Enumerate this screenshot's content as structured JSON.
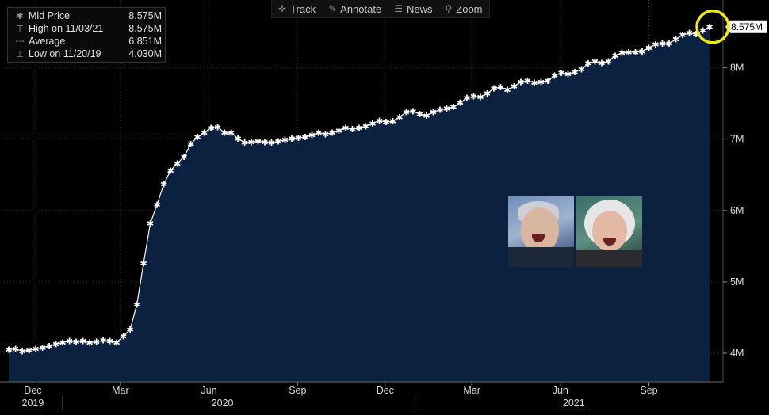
{
  "toolbar": {
    "track": "Track",
    "annotate": "Annotate",
    "news": "News",
    "zoom": "Zoom"
  },
  "legend": [
    {
      "label": "Mid Price",
      "value": "8.575M"
    },
    {
      "label": "High on 11/03/21",
      "value": "8.575M"
    },
    {
      "label": "Average",
      "value": "6.851M"
    },
    {
      "label": "Low on 11/20/19",
      "value": "4.030M"
    }
  ],
  "last_price_label": "8.575M",
  "colors": {
    "area": "#0a2240",
    "line": "#ffffff",
    "grid": "#3a3a3a",
    "highlight": "#f2e51a"
  },
  "chart_data": {
    "type": "area",
    "y_unit": "M",
    "ylim": [
      3.6,
      8.95
    ],
    "y_ticks": [
      {
        "value": 4,
        "label": "4M"
      },
      {
        "value": 5,
        "label": "5M"
      },
      {
        "value": 6,
        "label": "6M"
      },
      {
        "value": 7,
        "label": "7M"
      },
      {
        "value": 8,
        "label": "8M"
      }
    ],
    "x_range": [
      "2019-11-01",
      "2021-11-17"
    ],
    "x_ticks": [
      {
        "date": "2019-12-01",
        "label": "Dec"
      },
      {
        "date": "2020-03-01",
        "label": "Mar"
      },
      {
        "date": "2020-06-01",
        "label": "Jun"
      },
      {
        "date": "2020-09-01",
        "label": "Sep"
      },
      {
        "date": "2020-12-01",
        "label": "Dec"
      },
      {
        "date": "2021-03-01",
        "label": "Mar"
      },
      {
        "date": "2021-06-01",
        "label": "Jun"
      },
      {
        "date": "2021-09-01",
        "label": "Sep"
      }
    ],
    "years": [
      {
        "label": "2019",
        "date": "2019-12-01"
      },
      {
        "label": "2020",
        "date": "2020-06-15"
      },
      {
        "label": "2021",
        "date": "2021-06-15"
      }
    ],
    "year_dividers": [
      "2020-01-01",
      "2021-01-01"
    ],
    "series": [
      {
        "points": [
          [
            "2019-11-06",
            4.05
          ],
          [
            "2019-11-13",
            4.06
          ],
          [
            "2019-11-20",
            4.03
          ],
          [
            "2019-11-27",
            4.04
          ],
          [
            "2019-12-04",
            4.06
          ],
          [
            "2019-12-11",
            4.08
          ],
          [
            "2019-12-18",
            4.1
          ],
          [
            "2019-12-25",
            4.13
          ],
          [
            "2020-01-01",
            4.15
          ],
          [
            "2020-01-08",
            4.17
          ],
          [
            "2020-01-15",
            4.16
          ],
          [
            "2020-01-22",
            4.17
          ],
          [
            "2020-01-29",
            4.15
          ],
          [
            "2020-02-05",
            4.16
          ],
          [
            "2020-02-12",
            4.18
          ],
          [
            "2020-02-19",
            4.17
          ],
          [
            "2020-02-26",
            4.15
          ],
          [
            "2020-03-04",
            4.24
          ],
          [
            "2020-03-11",
            4.33
          ],
          [
            "2020-03-18",
            4.68
          ],
          [
            "2020-03-25",
            5.26
          ],
          [
            "2020-04-01",
            5.82
          ],
          [
            "2020-04-08",
            6.08
          ],
          [
            "2020-04-15",
            6.37
          ],
          [
            "2020-04-22",
            6.56
          ],
          [
            "2020-04-29",
            6.66
          ],
          [
            "2020-05-06",
            6.75
          ],
          [
            "2020-05-13",
            6.93
          ],
          [
            "2020-05-20",
            7.03
          ],
          [
            "2020-05-27",
            7.09
          ],
          [
            "2020-06-03",
            7.16
          ],
          [
            "2020-06-10",
            7.17
          ],
          [
            "2020-06-17",
            7.09
          ],
          [
            "2020-06-24",
            7.09
          ],
          [
            "2020-07-01",
            7.01
          ],
          [
            "2020-07-08",
            6.95
          ],
          [
            "2020-07-15",
            6.96
          ],
          [
            "2020-07-22",
            6.97
          ],
          [
            "2020-07-29",
            6.96
          ],
          [
            "2020-08-05",
            6.95
          ],
          [
            "2020-08-12",
            6.97
          ],
          [
            "2020-08-19",
            6.99
          ],
          [
            "2020-08-26",
            7.01
          ],
          [
            "2020-09-02",
            7.02
          ],
          [
            "2020-09-09",
            7.03
          ],
          [
            "2020-09-16",
            7.06
          ],
          [
            "2020-09-23",
            7.09
          ],
          [
            "2020-09-30",
            7.07
          ],
          [
            "2020-10-07",
            7.09
          ],
          [
            "2020-10-14",
            7.12
          ],
          [
            "2020-10-21",
            7.16
          ],
          [
            "2020-10-28",
            7.14
          ],
          [
            "2020-11-04",
            7.16
          ],
          [
            "2020-11-11",
            7.18
          ],
          [
            "2020-11-18",
            7.22
          ],
          [
            "2020-11-25",
            7.26
          ],
          [
            "2020-12-02",
            7.24
          ],
          [
            "2020-12-09",
            7.25
          ],
          [
            "2020-12-16",
            7.31
          ],
          [
            "2020-12-23",
            7.38
          ],
          [
            "2020-12-30",
            7.39
          ],
          [
            "2021-01-06",
            7.35
          ],
          [
            "2021-01-13",
            7.33
          ],
          [
            "2021-01-20",
            7.38
          ],
          [
            "2021-01-27",
            7.41
          ],
          [
            "2021-02-03",
            7.43
          ],
          [
            "2021-02-10",
            7.45
          ],
          [
            "2021-02-17",
            7.51
          ],
          [
            "2021-02-24",
            7.58
          ],
          [
            "2021-03-03",
            7.6
          ],
          [
            "2021-03-10",
            7.59
          ],
          [
            "2021-03-17",
            7.64
          ],
          [
            "2021-03-24",
            7.71
          ],
          [
            "2021-03-31",
            7.73
          ],
          [
            "2021-04-07",
            7.69
          ],
          [
            "2021-04-14",
            7.74
          ],
          [
            "2021-04-21",
            7.8
          ],
          [
            "2021-04-28",
            7.82
          ],
          [
            "2021-05-05",
            7.79
          ],
          [
            "2021-05-12",
            7.8
          ],
          [
            "2021-05-19",
            7.82
          ],
          [
            "2021-05-26",
            7.89
          ],
          [
            "2021-06-02",
            7.93
          ],
          [
            "2021-06-09",
            7.91
          ],
          [
            "2021-06-16",
            7.94
          ],
          [
            "2021-06-23",
            7.98
          ],
          [
            "2021-06-30",
            8.06
          ],
          [
            "2021-07-07",
            8.09
          ],
          [
            "2021-07-14",
            8.07
          ],
          [
            "2021-07-21",
            8.09
          ],
          [
            "2021-07-28",
            8.17
          ],
          [
            "2021-08-04",
            8.21
          ],
          [
            "2021-08-11",
            8.22
          ],
          [
            "2021-08-18",
            8.22
          ],
          [
            "2021-08-25",
            8.23
          ],
          [
            "2021-09-01",
            8.28
          ],
          [
            "2021-09-08",
            8.33
          ],
          [
            "2021-09-15",
            8.34
          ],
          [
            "2021-09-22",
            8.34
          ],
          [
            "2021-09-29",
            8.4
          ],
          [
            "2021-10-06",
            8.46
          ],
          [
            "2021-10-13",
            8.49
          ],
          [
            "2021-10-20",
            8.47
          ],
          [
            "2021-10-27",
            8.52
          ],
          [
            "2021-11-03",
            8.575
          ]
        ]
      }
    ]
  }
}
